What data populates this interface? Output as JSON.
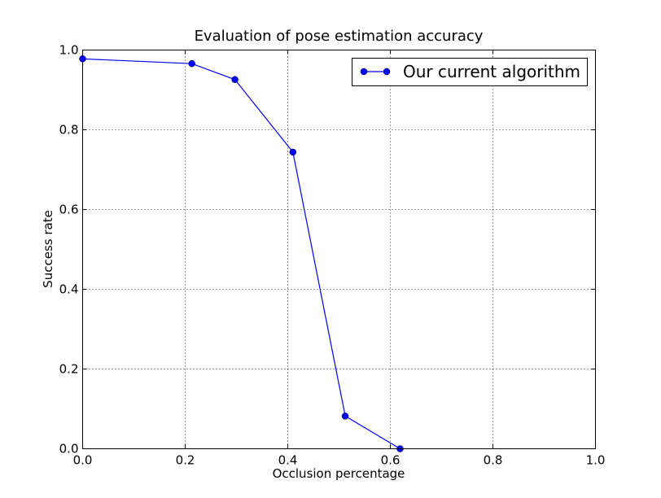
{
  "chart_data": {
    "type": "line",
    "title": "Evaluation of pose estimation accuracy",
    "xlabel": "Occlusion percentage",
    "ylabel": "Success rate",
    "xlim": [
      0.0,
      1.0
    ],
    "ylim": [
      0.0,
      1.0
    ],
    "xticks": [
      "0.0",
      "0.2",
      "0.4",
      "0.6",
      "0.8",
      "1.0"
    ],
    "yticks": [
      "0.0",
      "0.2",
      "0.4",
      "0.6",
      "0.8",
      "1.0"
    ],
    "grid": true,
    "legend_position": "top-right",
    "series": [
      {
        "name": "Our current algorithm",
        "color": "#0000ff",
        "marker": "circle",
        "x": [
          0.0,
          0.213,
          0.297,
          0.41,
          0.512,
          0.619
        ],
        "y": [
          0.978,
          0.966,
          0.926,
          0.744,
          0.082,
          0.0
        ]
      }
    ]
  }
}
